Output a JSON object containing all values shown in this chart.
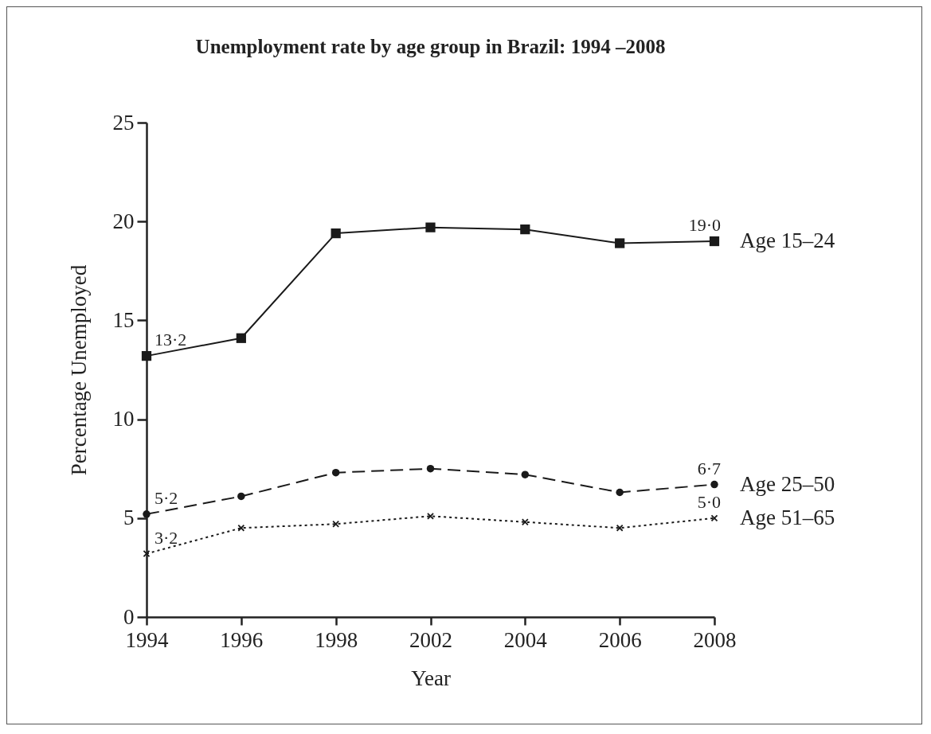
{
  "chart_data": {
    "type": "line",
    "title": "Unemployment rate by age group in Brazil: 1994 –2008",
    "xlabel": "Year",
    "ylabel": "Percentage Unemployed",
    "categories": [
      "1994",
      "1996",
      "1998",
      "2002",
      "2004",
      "2006",
      "2008"
    ],
    "ylim": [
      0,
      25
    ],
    "yticks": [
      0,
      5,
      10,
      15,
      20,
      25
    ],
    "grid": false,
    "series": [
      {
        "name": "Age 15–24",
        "color": "#1a1a1a",
        "marker": "square",
        "line_style": "solid",
        "values": [
          13.2,
          14.1,
          19.4,
          19.7,
          19.6,
          18.9,
          19.0
        ],
        "value_labels": [
          "13·2",
          null,
          null,
          null,
          null,
          null,
          "19·0"
        ]
      },
      {
        "name": "Age 25–50",
        "color": "#1a1a1a",
        "marker": "circle",
        "line_style": "dashed",
        "values": [
          5.2,
          6.1,
          7.3,
          7.5,
          7.2,
          6.3,
          6.7
        ],
        "value_labels": [
          "5·2",
          null,
          null,
          null,
          null,
          null,
          "6·7"
        ]
      },
      {
        "name": "Age 51–65",
        "color": "#1a1a1a",
        "marker": "cross",
        "line_style": "dotted",
        "values": [
          3.2,
          4.5,
          4.7,
          5.1,
          4.8,
          4.5,
          5.0
        ],
        "value_labels": [
          "3·2",
          null,
          null,
          null,
          null,
          null,
          "5·0"
        ]
      }
    ]
  }
}
